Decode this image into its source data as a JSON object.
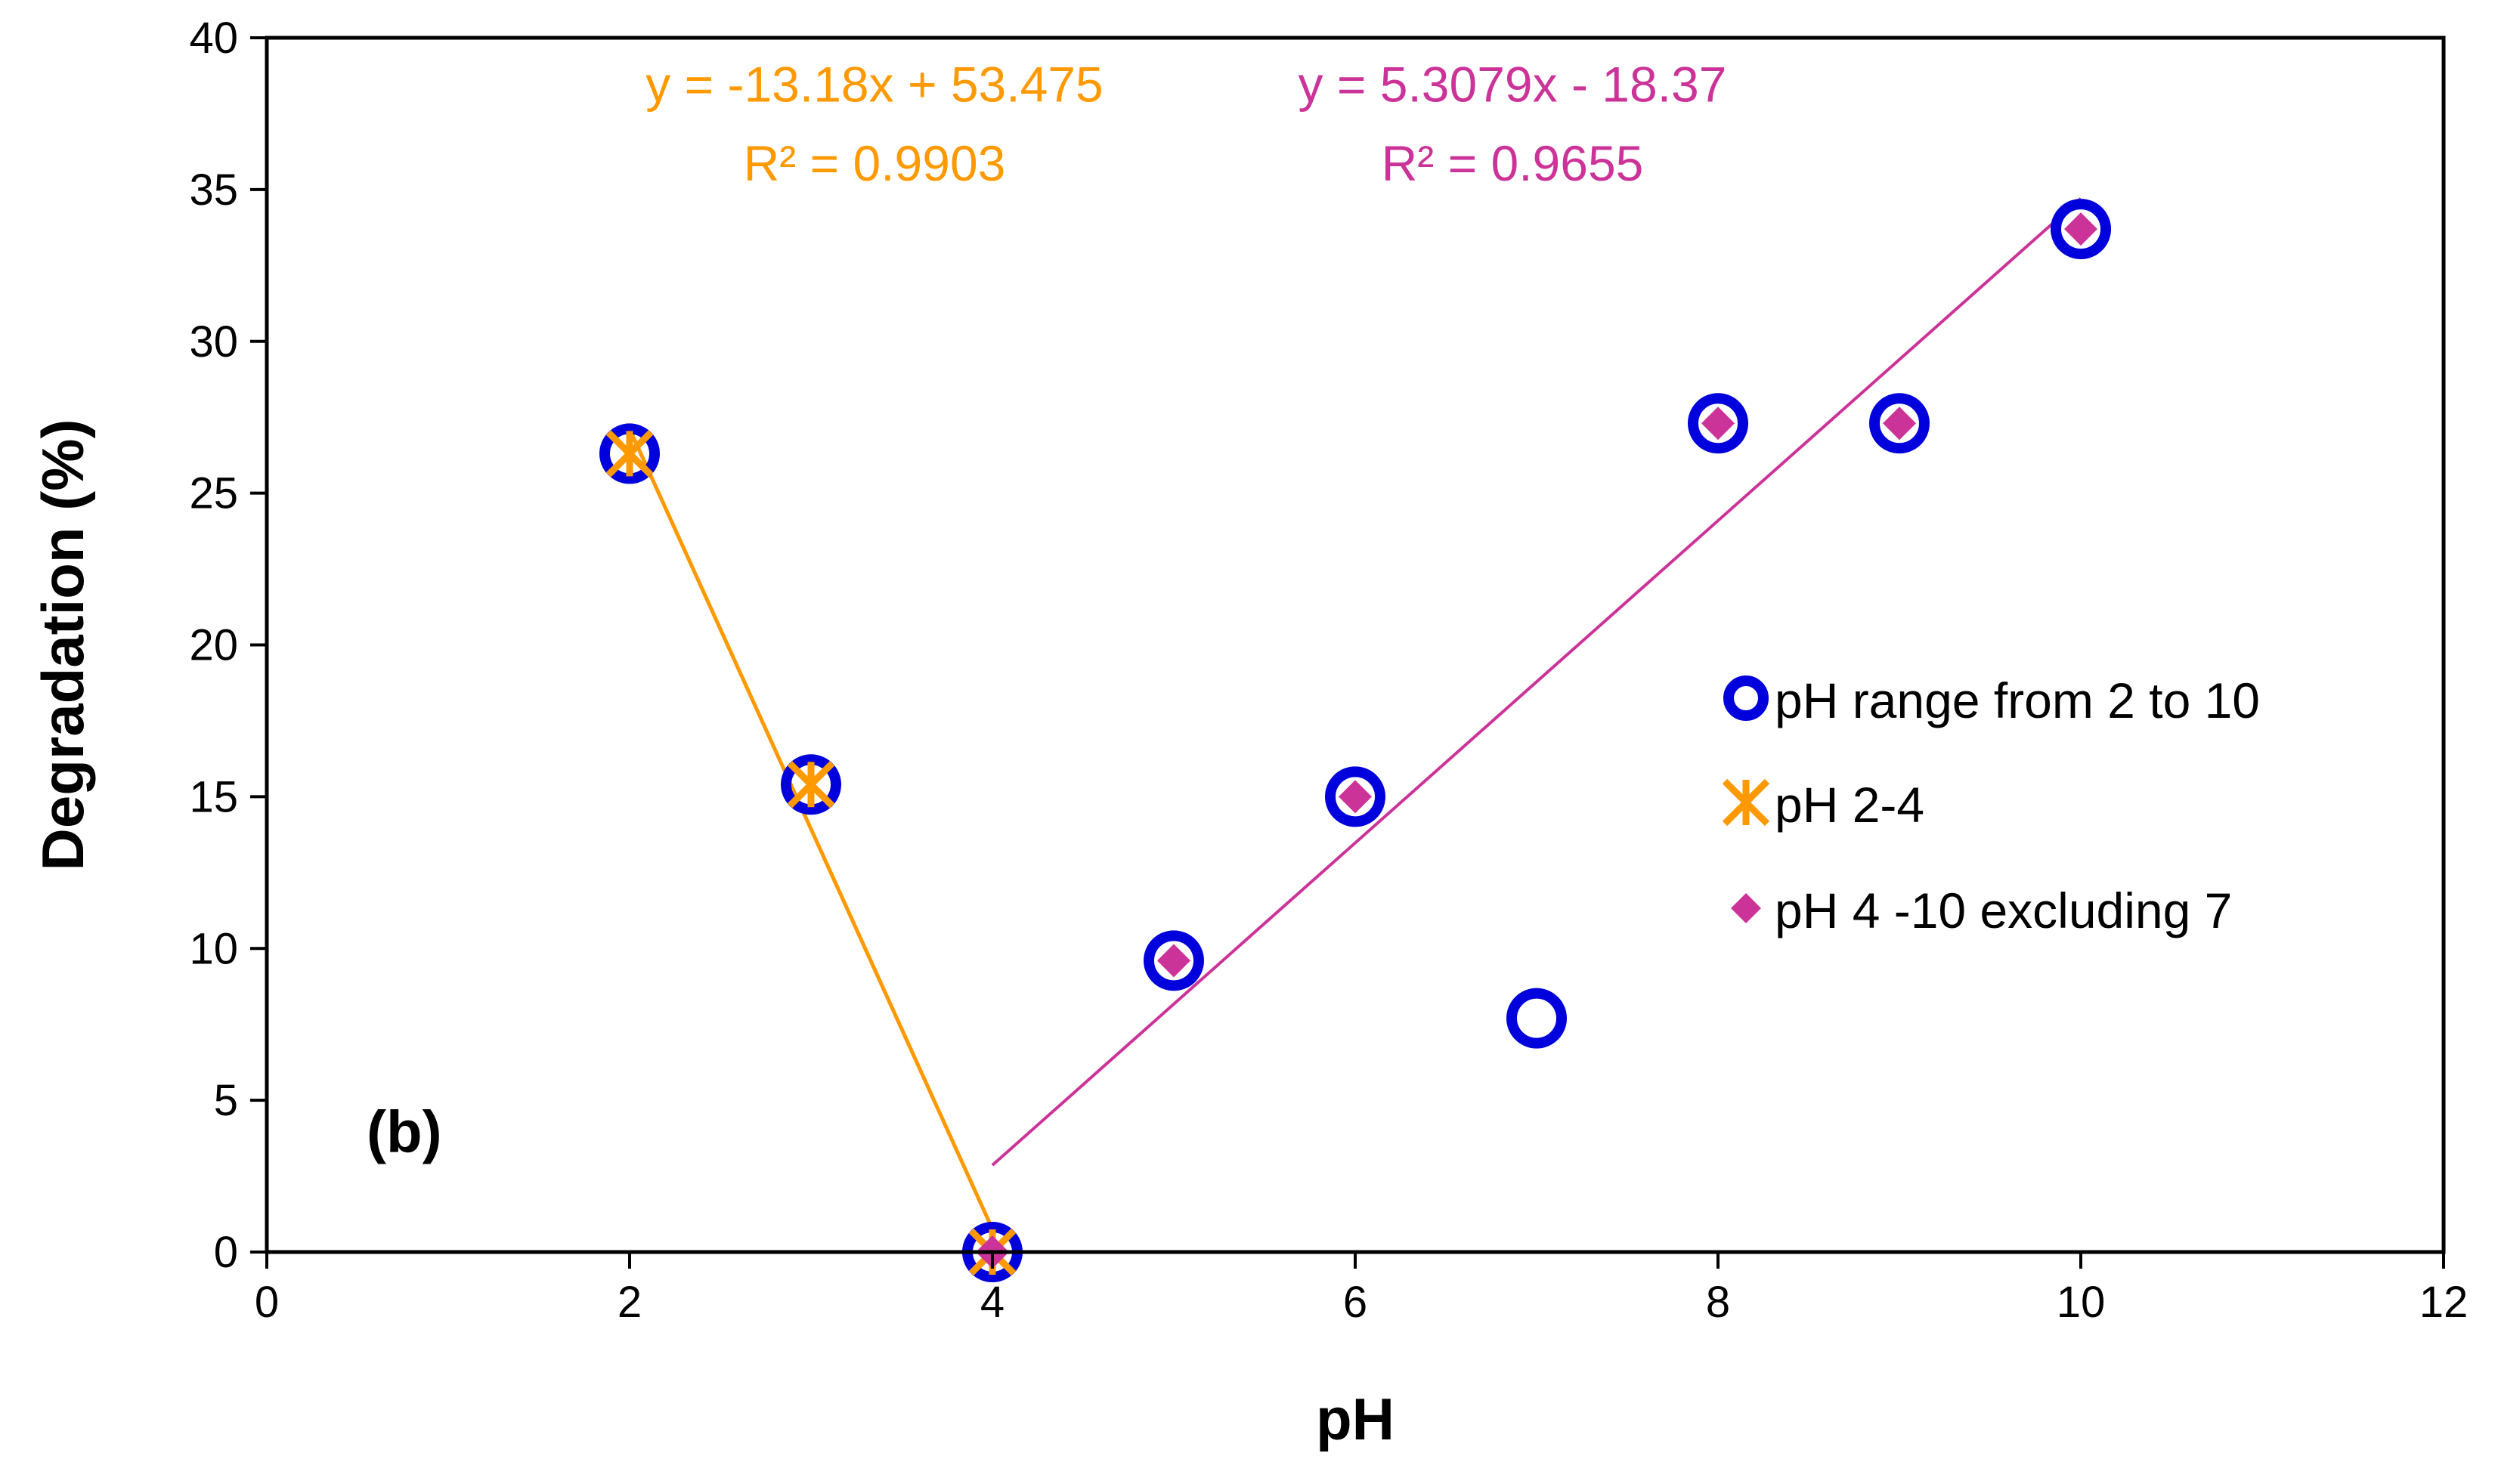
{
  "chart_data": {
    "type": "scatter",
    "xlabel": "pH",
    "ylabel": "Degradation (%)",
    "xlim": [
      0,
      12
    ],
    "ylim": [
      0,
      40
    ],
    "x_ticks": [
      0,
      2,
      4,
      6,
      8,
      10,
      12
    ],
    "y_ticks": [
      0,
      5,
      10,
      15,
      20,
      25,
      30,
      35,
      40
    ],
    "grid": false,
    "legend_position": "right",
    "panel_label": "(b)",
    "series": [
      {
        "name": "pH range from 2 to 10",
        "marker": "circle-open",
        "color": "#0000dd",
        "x": [
          2,
          3,
          4,
          5,
          6,
          7,
          8,
          9,
          10
        ],
        "y": [
          26.3,
          15.4,
          0,
          9.6,
          15.0,
          7.7,
          27.3,
          27.3,
          33.7
        ]
      },
      {
        "name": "pH 2-4",
        "marker": "x-star",
        "color": "#ff9900",
        "x": [
          2,
          3,
          4
        ],
        "y": [
          26.3,
          15.4,
          0
        ],
        "trendline": {
          "slope": -13.18,
          "intercept": 53.475,
          "x_range": [
            2,
            4
          ],
          "equation": "y = -13.18x + 53.475",
          "r2": "R² = 0.9903",
          "label_anchor": [
            3.6,
            36.3
          ]
        }
      },
      {
        "name": "pH 4 -10 excluding 7",
        "marker": "diamond",
        "color": "#cc3399",
        "x": [
          4,
          5,
          6,
          8,
          9,
          10
        ],
        "y": [
          0,
          9.6,
          15.0,
          27.3,
          27.3,
          33.7
        ],
        "trendline": {
          "slope": 5.3079,
          "intercept": -18.37,
          "x_range": [
            4,
            10
          ],
          "equation": "y = 5.3079x - 18.37",
          "r2": "R² = 0.9655",
          "label_anchor": [
            7.2,
            36.3
          ]
        }
      }
    ]
  }
}
